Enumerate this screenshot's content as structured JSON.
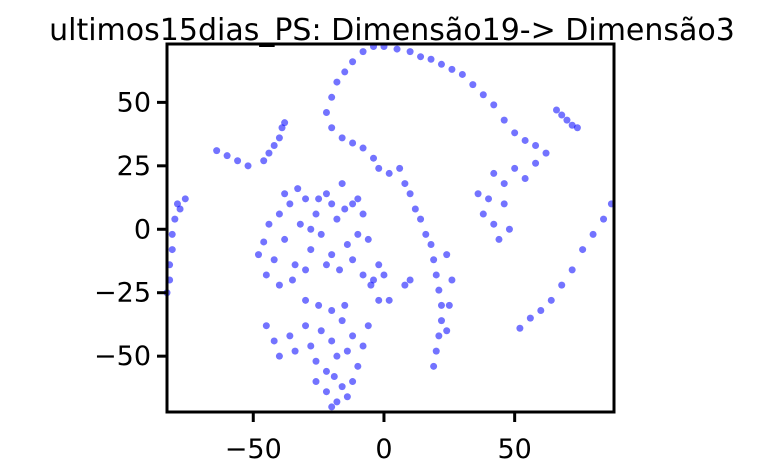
{
  "chart_data": {
    "type": "scatter",
    "title": "ultimos15dias_PS: Dimensão19-> Dimensão3",
    "xlabel": "",
    "ylabel": "",
    "xlim": [
      -83,
      88
    ],
    "ylim": [
      -72,
      73
    ],
    "grid": false,
    "point_color": "#0000ff",
    "x_ticks": [
      {
        "value": -50,
        "label": "−50"
      },
      {
        "value": 0,
        "label": "0"
      },
      {
        "value": 50,
        "label": "50"
      }
    ],
    "y_ticks": [
      {
        "value": 50,
        "label": "50"
      },
      {
        "value": 25,
        "label": "25"
      },
      {
        "value": 0,
        "label": "0"
      },
      {
        "value": -25,
        "label": "−25"
      },
      {
        "value": -50,
        "label": "−50"
      }
    ],
    "series": [
      {
        "points": [
          [
            -48,
            -10
          ],
          [
            -46,
            -5
          ],
          [
            -44,
            2
          ],
          [
            -42,
            -12
          ],
          [
            -40,
            6
          ],
          [
            -38,
            -4
          ],
          [
            -36,
            10
          ],
          [
            -34,
            -14
          ],
          [
            -32,
            2
          ],
          [
            -30,
            12
          ],
          [
            -28,
            -8
          ],
          [
            -26,
            6
          ],
          [
            -24,
            -2
          ],
          [
            -22,
            14
          ],
          [
            -20,
            -10
          ],
          [
            -18,
            4
          ],
          [
            -16,
            18
          ],
          [
            -14,
            -6
          ],
          [
            -12,
            10
          ],
          [
            -10,
            -2
          ],
          [
            -8,
            6
          ],
          [
            -6,
            -4
          ],
          [
            -45,
            -18
          ],
          [
            -40,
            -22
          ],
          [
            -35,
            -20
          ],
          [
            -30,
            -16
          ],
          [
            -25,
            12
          ],
          [
            -20,
            10
          ],
          [
            -15,
            8
          ],
          [
            -10,
            12
          ],
          [
            -38,
            14
          ],
          [
            -33,
            16
          ],
          [
            -28,
            0
          ],
          [
            -22,
            -14
          ],
          [
            -17,
            -16
          ],
          [
            -12,
            -12
          ],
          [
            -8,
            -18
          ],
          [
            -5,
            -22
          ],
          [
            -2,
            -28
          ],
          [
            2,
            -28
          ],
          [
            -45,
            -38
          ],
          [
            -42,
            -44
          ],
          [
            -40,
            -50
          ],
          [
            -36,
            -42
          ],
          [
            -34,
            -48
          ],
          [
            -30,
            -38
          ],
          [
            -28,
            -46
          ],
          [
            -26,
            -52
          ],
          [
            -24,
            -40
          ],
          [
            -22,
            -56
          ],
          [
            -20,
            -44
          ],
          [
            -18,
            -50
          ],
          [
            -16,
            -36
          ],
          [
            -14,
            -48
          ],
          [
            -12,
            -42
          ],
          [
            -10,
            -54
          ],
          [
            -8,
            -46
          ],
          [
            -6,
            -38
          ],
          [
            -30,
            -28
          ],
          [
            -25,
            -30
          ],
          [
            -20,
            -32
          ],
          [
            -15,
            -30
          ],
          [
            -26,
            -60
          ],
          [
            -22,
            -64
          ],
          [
            -19,
            -58
          ],
          [
            -18,
            -68
          ],
          [
            -16,
            -62
          ],
          [
            -14,
            -66
          ],
          [
            -20,
            -70
          ],
          [
            -12,
            -60
          ],
          [
            -20,
            52
          ],
          [
            -18,
            58
          ],
          [
            -15,
            62
          ],
          [
            -12,
            66
          ],
          [
            -8,
            70
          ],
          [
            -4,
            72
          ],
          [
            0,
            72
          ],
          [
            5,
            71
          ],
          [
            10,
            70
          ],
          [
            14,
            68
          ],
          [
            -22,
            46
          ],
          [
            -20,
            40
          ],
          [
            -16,
            36
          ],
          [
            -12,
            34
          ],
          [
            -8,
            32
          ],
          [
            -4,
            28
          ],
          [
            -2,
            24
          ],
          [
            2,
            22
          ],
          [
            6,
            24
          ],
          [
            8,
            18
          ],
          [
            10,
            14
          ],
          [
            12,
            8
          ],
          [
            14,
            4
          ],
          [
            16,
            -2
          ],
          [
            18,
            -6
          ],
          [
            19,
            -12
          ],
          [
            20,
            -18
          ],
          [
            21,
            -24
          ],
          [
            22,
            -30
          ],
          [
            22,
            -36
          ],
          [
            21,
            -42
          ],
          [
            20,
            -48
          ],
          [
            19,
            -54
          ],
          [
            24,
            -40
          ],
          [
            25,
            -30
          ],
          [
            26,
            -20
          ],
          [
            24,
            -10
          ],
          [
            18,
            67
          ],
          [
            22,
            65
          ],
          [
            26,
            63
          ],
          [
            30,
            61
          ],
          [
            34,
            57
          ],
          [
            38,
            53
          ],
          [
            42,
            49
          ],
          [
            46,
            43
          ],
          [
            50,
            38
          ],
          [
            54,
            35
          ],
          [
            58,
            33
          ],
          [
            62,
            30
          ],
          [
            58,
            26
          ],
          [
            54,
            20
          ],
          [
            50,
            24
          ],
          [
            46,
            18
          ],
          [
            42,
            22
          ],
          [
            40,
            12
          ],
          [
            38,
            6
          ],
          [
            42,
            2
          ],
          [
            46,
            10
          ],
          [
            48,
            0
          ],
          [
            44,
            -4
          ],
          [
            36,
            14
          ],
          [
            -78,
            8
          ],
          [
            -80,
            4
          ],
          [
            -81,
            -2
          ],
          [
            -81,
            -8
          ],
          [
            -82,
            -14
          ],
          [
            -82,
            -20
          ],
          [
            -83,
            -25
          ],
          [
            -79,
            10
          ],
          [
            -76,
            12
          ],
          [
            -64,
            31
          ],
          [
            -60,
            29
          ],
          [
            -56,
            27
          ],
          [
            -52,
            25
          ],
          [
            -46,
            27
          ],
          [
            -44,
            30
          ],
          [
            -42,
            33
          ],
          [
            -40,
            36
          ],
          [
            -39,
            40
          ],
          [
            -38,
            42
          ],
          [
            66,
            47
          ],
          [
            68,
            45
          ],
          [
            70,
            43
          ],
          [
            72,
            41
          ],
          [
            74,
            40
          ],
          [
            52,
            -39
          ],
          [
            56,
            -35
          ],
          [
            60,
            -32
          ],
          [
            64,
            -28
          ],
          [
            68,
            -22
          ],
          [
            72,
            -16
          ],
          [
            76,
            -8
          ],
          [
            80,
            -2
          ],
          [
            84,
            4
          ],
          [
            87,
            10
          ],
          [
            8,
            -22
          ],
          [
            10,
            -20
          ],
          [
            -2,
            -14
          ],
          [
            0,
            -18
          ],
          [
            -4,
            -20
          ]
        ]
      }
    ]
  }
}
